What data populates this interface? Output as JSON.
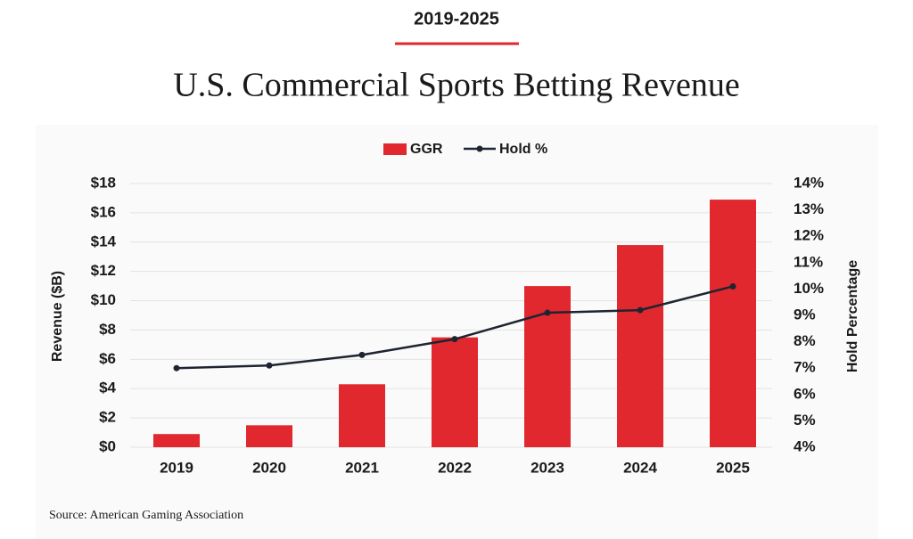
{
  "header": "2019-2025",
  "chart_data": {
    "type": "bar_line",
    "title": "U.S. Commercial Sports Betting Revenue",
    "categories": [
      "2019",
      "2020",
      "2021",
      "2022",
      "2023",
      "2024",
      "2025"
    ],
    "series": [
      {
        "name": "GGR",
        "type": "bar",
        "color": "#e0282e",
        "values": [
          0.9,
          1.5,
          4.3,
          7.5,
          11.0,
          13.8,
          16.9
        ]
      },
      {
        "name": "Hold %",
        "type": "line",
        "axis": "y2",
        "color": "#1f2431",
        "values": [
          7.0,
          7.1,
          7.5,
          8.1,
          9.1,
          9.2,
          10.1
        ]
      }
    ],
    "ylabel": "Revenue  ($B)",
    "y2label": "Hold Percentage",
    "ylim": [
      0,
      18
    ],
    "yticks": [
      {
        "value": 0,
        "label": "$0"
      },
      {
        "value": 2,
        "label": "$2"
      },
      {
        "value": 4,
        "label": "$4"
      },
      {
        "value": 6,
        "label": "$6"
      },
      {
        "value": 8,
        "label": "$8"
      },
      {
        "value": 10,
        "label": "$10"
      },
      {
        "value": 12,
        "label": "$12"
      },
      {
        "value": 14,
        "label": "$14"
      },
      {
        "value": 16,
        "label": "$16"
      },
      {
        "value": 18,
        "label": "$18"
      }
    ],
    "y2lim": [
      4,
      14
    ],
    "y2ticks": [
      {
        "value": 4,
        "label": "4%"
      },
      {
        "value": 5,
        "label": "5%"
      },
      {
        "value": 6,
        "label": "6%"
      },
      {
        "value": 7,
        "label": "7%"
      },
      {
        "value": 8,
        "label": "8%"
      },
      {
        "value": 9,
        "label": "9%"
      },
      {
        "value": 10,
        "label": "10%"
      },
      {
        "value": 11,
        "label": "11%"
      },
      {
        "value": 12,
        "label": "12%"
      },
      {
        "value": 13,
        "label": "13%"
      },
      {
        "value": 14,
        "label": "14%"
      }
    ],
    "grid": true,
    "legend": "top",
    "source": "Source: American Gaming Association"
  }
}
